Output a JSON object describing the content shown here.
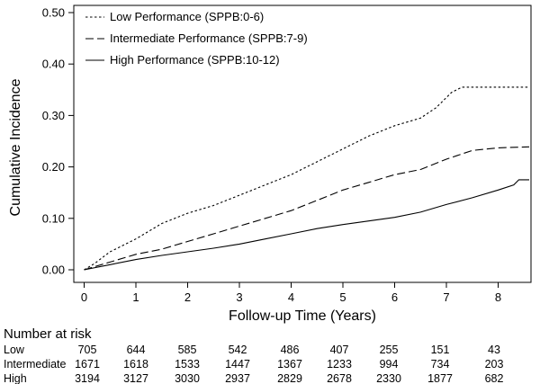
{
  "chart_data": {
    "type": "line",
    "title": "",
    "xlabel": "Follow-up Time (Years)",
    "ylabel": "Cumulative Incidence",
    "xlim": [
      0,
      8.6
    ],
    "ylim": [
      0,
      0.5
    ],
    "xticks": [
      "0",
      "1",
      "2",
      "3",
      "4",
      "5",
      "6",
      "7",
      "8"
    ],
    "yticks": [
      "0.00",
      "0.10",
      "0.20",
      "0.30",
      "0.40",
      "0.50"
    ],
    "grid": false,
    "legend_position": "top-left",
    "series": [
      {
        "name": "Low Performance (SPPB:0-6)",
        "line_style": "dotted",
        "points": [
          [
            0,
            0
          ],
          [
            0.2,
            0.012
          ],
          [
            0.5,
            0.035
          ],
          [
            1.0,
            0.06
          ],
          [
            1.5,
            0.09
          ],
          [
            2.0,
            0.11
          ],
          [
            2.5,
            0.125
          ],
          [
            3.0,
            0.145
          ],
          [
            3.5,
            0.165
          ],
          [
            4.0,
            0.185
          ],
          [
            4.5,
            0.21
          ],
          [
            5.0,
            0.235
          ],
          [
            5.5,
            0.26
          ],
          [
            6.0,
            0.28
          ],
          [
            6.5,
            0.295
          ],
          [
            6.8,
            0.315
          ],
          [
            7.1,
            0.345
          ],
          [
            7.3,
            0.355
          ],
          [
            8.6,
            0.355
          ]
        ]
      },
      {
        "name": "Intermediate Performance (SPPB:7-9)",
        "line_style": "dashed",
        "points": [
          [
            0,
            0
          ],
          [
            0.5,
            0.015
          ],
          [
            1.0,
            0.03
          ],
          [
            1.5,
            0.04
          ],
          [
            2.0,
            0.055
          ],
          [
            2.5,
            0.07
          ],
          [
            3.0,
            0.085
          ],
          [
            3.5,
            0.1
          ],
          [
            4.0,
            0.115
          ],
          [
            4.5,
            0.135
          ],
          [
            5.0,
            0.155
          ],
          [
            5.5,
            0.17
          ],
          [
            6.0,
            0.185
          ],
          [
            6.5,
            0.195
          ],
          [
            7.0,
            0.215
          ],
          [
            7.5,
            0.232
          ],
          [
            8.0,
            0.237
          ],
          [
            8.6,
            0.239
          ]
        ]
      },
      {
        "name": "High Performance (SPPB:10-12)",
        "line_style": "solid",
        "points": [
          [
            0,
            0
          ],
          [
            0.5,
            0.01
          ],
          [
            1.0,
            0.02
          ],
          [
            1.5,
            0.028
          ],
          [
            2.0,
            0.035
          ],
          [
            2.5,
            0.042
          ],
          [
            3.0,
            0.05
          ],
          [
            3.5,
            0.06
          ],
          [
            4.0,
            0.07
          ],
          [
            4.5,
            0.08
          ],
          [
            5.0,
            0.088
          ],
          [
            5.5,
            0.095
          ],
          [
            6.0,
            0.102
          ],
          [
            6.5,
            0.112
          ],
          [
            7.0,
            0.127
          ],
          [
            7.5,
            0.14
          ],
          [
            8.0,
            0.155
          ],
          [
            8.3,
            0.165
          ],
          [
            8.4,
            0.175
          ],
          [
            8.6,
            0.175
          ]
        ]
      }
    ],
    "risk_table": {
      "title": "Number at risk",
      "rows": [
        {
          "label": "Low",
          "values": [
            "705",
            "644",
            "585",
            "542",
            "486",
            "407",
            "255",
            "151",
            "43"
          ]
        },
        {
          "label": "Intermediate",
          "values": [
            "1671",
            "1618",
            "1533",
            "1447",
            "1367",
            "1233",
            "994",
            "734",
            "203"
          ]
        },
        {
          "label": "High",
          "values": [
            "3194",
            "3127",
            "3030",
            "2937",
            "2829",
            "2678",
            "2330",
            "1877",
            "682"
          ]
        }
      ]
    }
  }
}
